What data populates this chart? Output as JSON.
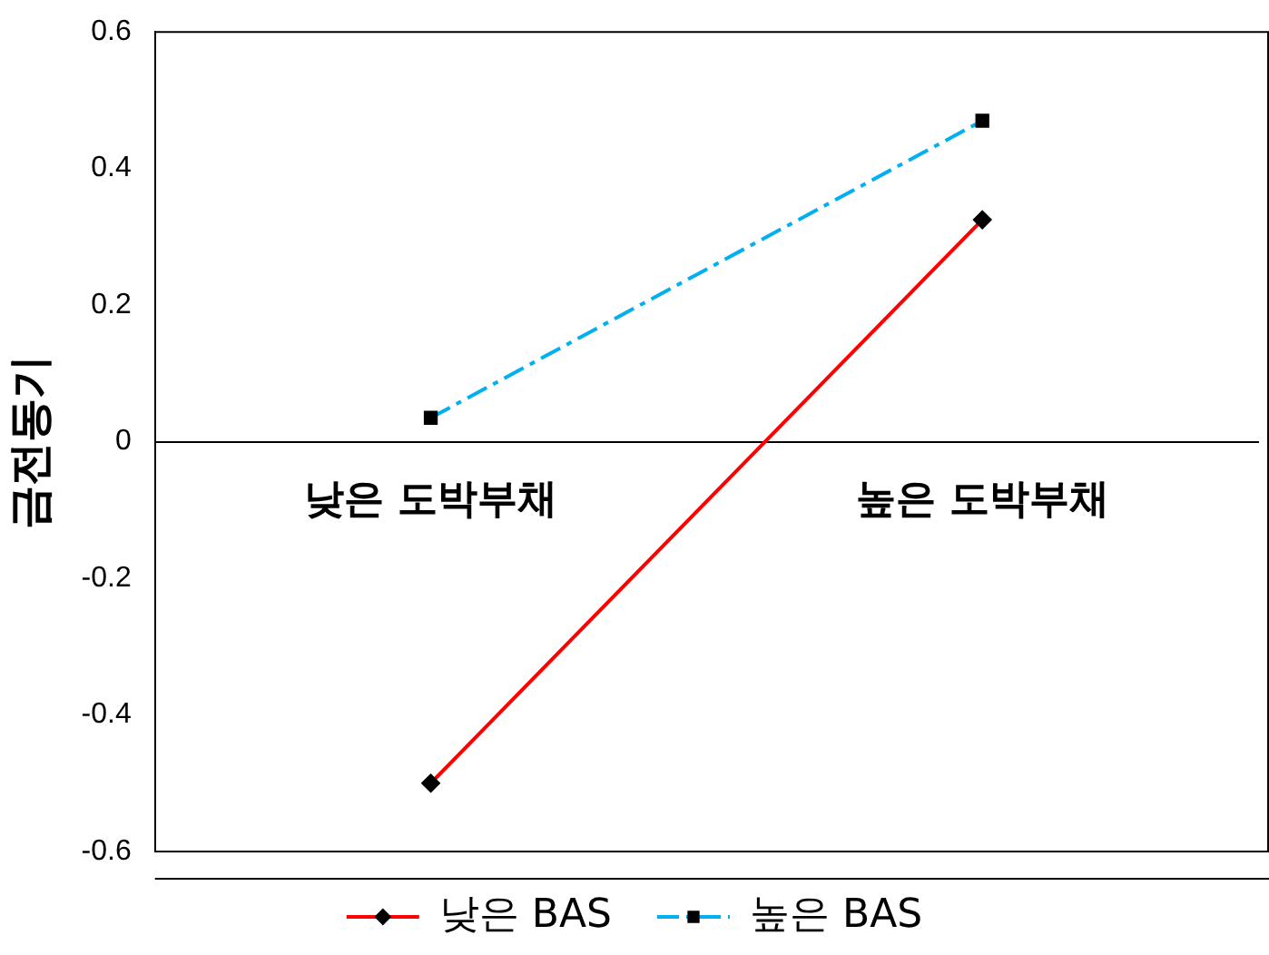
{
  "chart_data": {
    "type": "line",
    "ylabel": "금전동기",
    "categories": [
      "낮은 도박부채",
      "높은 도박부채"
    ],
    "series": [
      {
        "name": "낮은 BAS",
        "color": "#ff0000",
        "values": [
          -0.5,
          0.325
        ],
        "marker": "diamond",
        "line_style": "solid"
      },
      {
        "name": "높은 BAS",
        "color": "#00b0f0",
        "values": [
          0.035,
          0.47
        ],
        "marker": "square",
        "line_style": "dashed"
      }
    ],
    "ylim": [
      -0.6,
      0.6
    ],
    "yticks": [
      -0.6,
      -0.4,
      -0.2,
      0,
      0.2,
      0.4,
      0.6
    ],
    "grid": false,
    "legend": "bottom"
  }
}
